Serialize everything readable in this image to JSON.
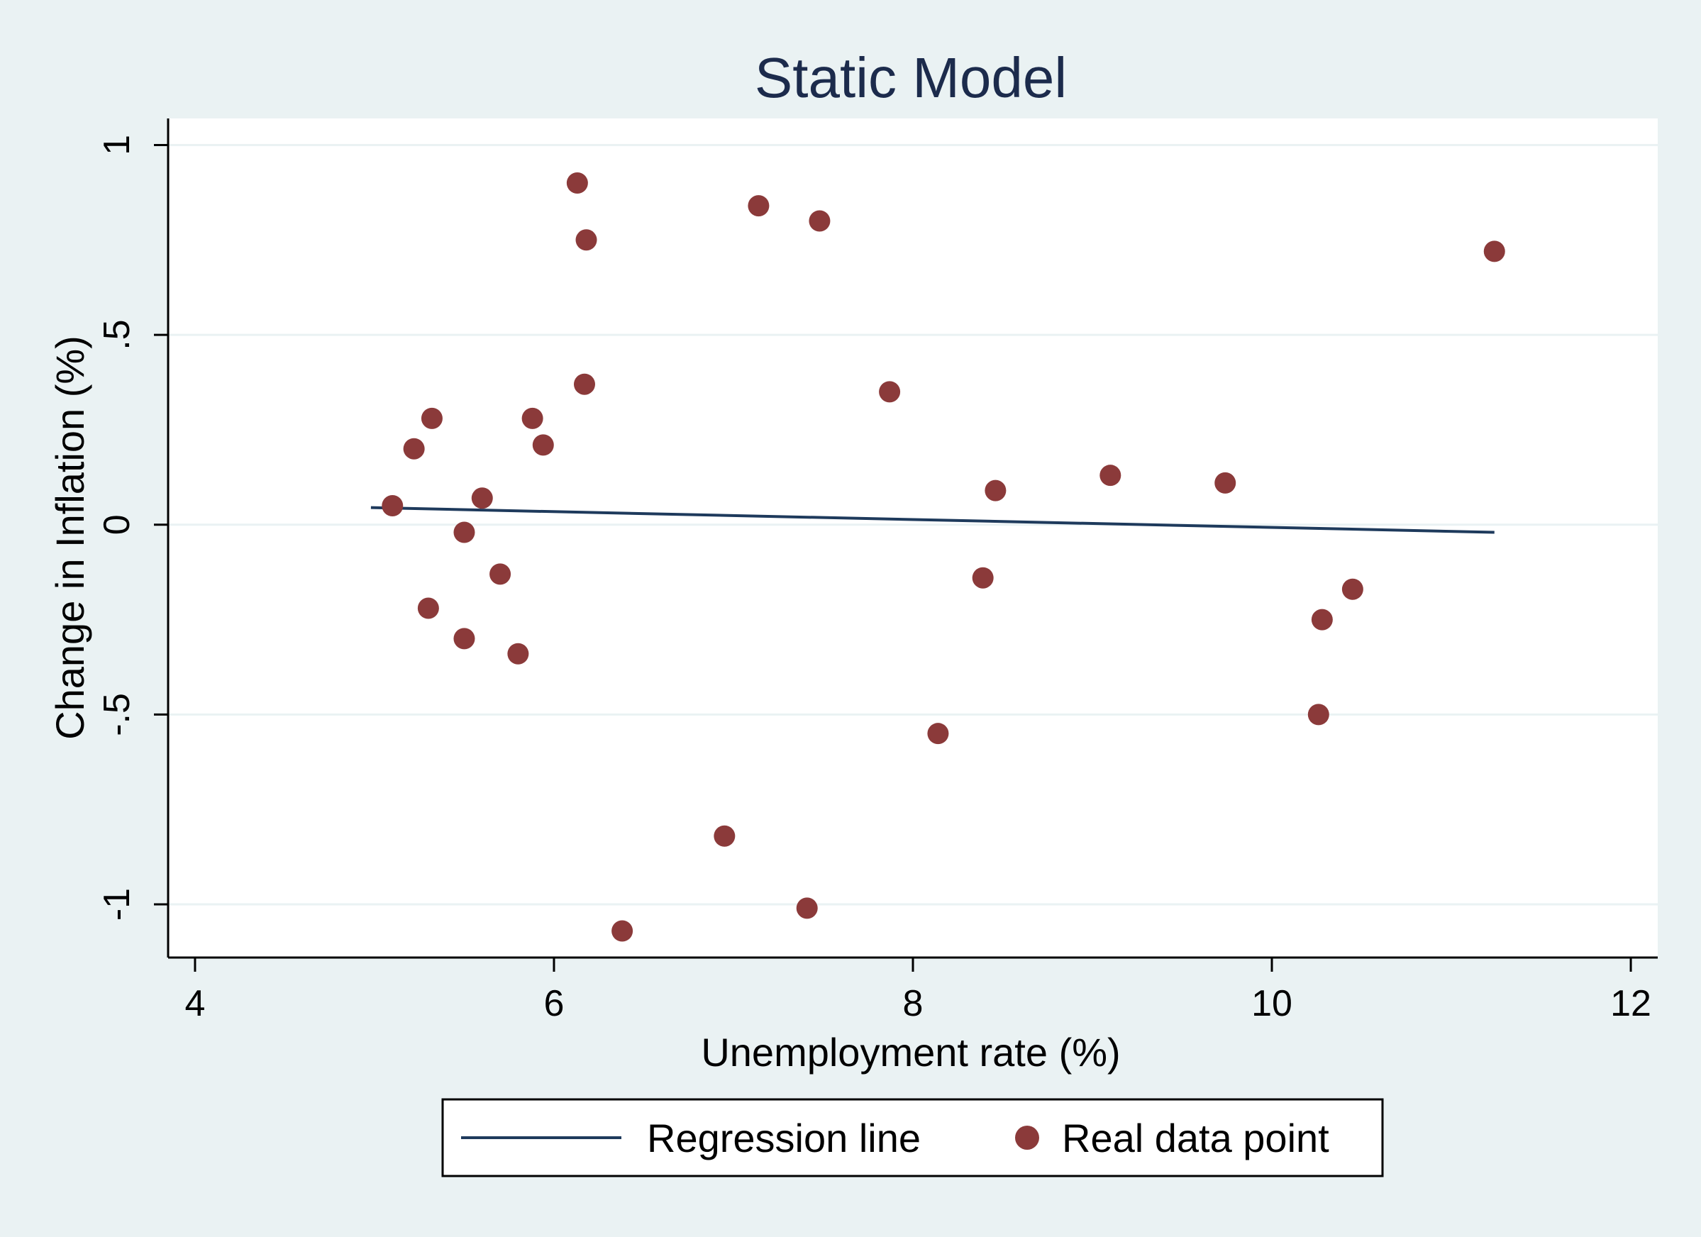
{
  "chart_data": {
    "type": "scatter",
    "title": "Static Model",
    "xlabel": "Unemployment rate (%)",
    "ylabel": "Change in Inflation (%)",
    "xlim": [
      3.85,
      12.15
    ],
    "ylim": [
      -1.14,
      1.07
    ],
    "xticks": [
      {
        "value": 4,
        "label": "4"
      },
      {
        "value": 6,
        "label": "6"
      },
      {
        "value": 8,
        "label": "8"
      },
      {
        "value": 10,
        "label": "10"
      },
      {
        "value": 12,
        "label": "12"
      }
    ],
    "yticks": [
      {
        "value": 1,
        "label": "1"
      },
      {
        "value": 0.5,
        "label": ".5"
      },
      {
        "value": 0,
        "label": "0"
      },
      {
        "value": -0.5,
        "label": "-.5"
      },
      {
        "value": -1,
        "label": "-1"
      }
    ],
    "grid": true,
    "legend_position": "bottom",
    "colors": {
      "line": "#1e3a5c",
      "points": "#8b3a3a",
      "plot_bg": "#ffffff",
      "outer_bg": "#eaf2f3",
      "grid": "#eaf2f3",
      "title": "#1c2b4c"
    },
    "series": [
      {
        "name": "Regression line",
        "type": "line",
        "x": [
          4.98,
          11.24
        ],
        "y": [
          0.045,
          -0.02
        ]
      },
      {
        "name": "Real data point",
        "type": "scatter",
        "x": [
          5.1,
          5.22,
          5.32,
          5.3,
          5.5,
          5.5,
          5.6,
          5.7,
          5.8,
          5.88,
          5.94,
          6.13,
          6.17,
          6.18,
          6.38,
          6.95,
          7.14,
          7.41,
          7.48,
          7.87,
          8.14,
          8.39,
          8.46,
          9.1,
          9.74,
          10.26,
          10.28,
          10.45,
          11.24
        ],
        "y": [
          0.05,
          0.2,
          0.28,
          -0.22,
          -0.02,
          -0.3,
          0.07,
          -0.13,
          -0.34,
          0.28,
          0.21,
          0.9,
          0.37,
          0.75,
          -1.07,
          -0.82,
          0.84,
          -1.01,
          0.8,
          0.35,
          -0.55,
          -0.14,
          0.09,
          0.13,
          0.11,
          -0.5,
          -0.25,
          -0.17,
          0.72
        ]
      }
    ]
  }
}
